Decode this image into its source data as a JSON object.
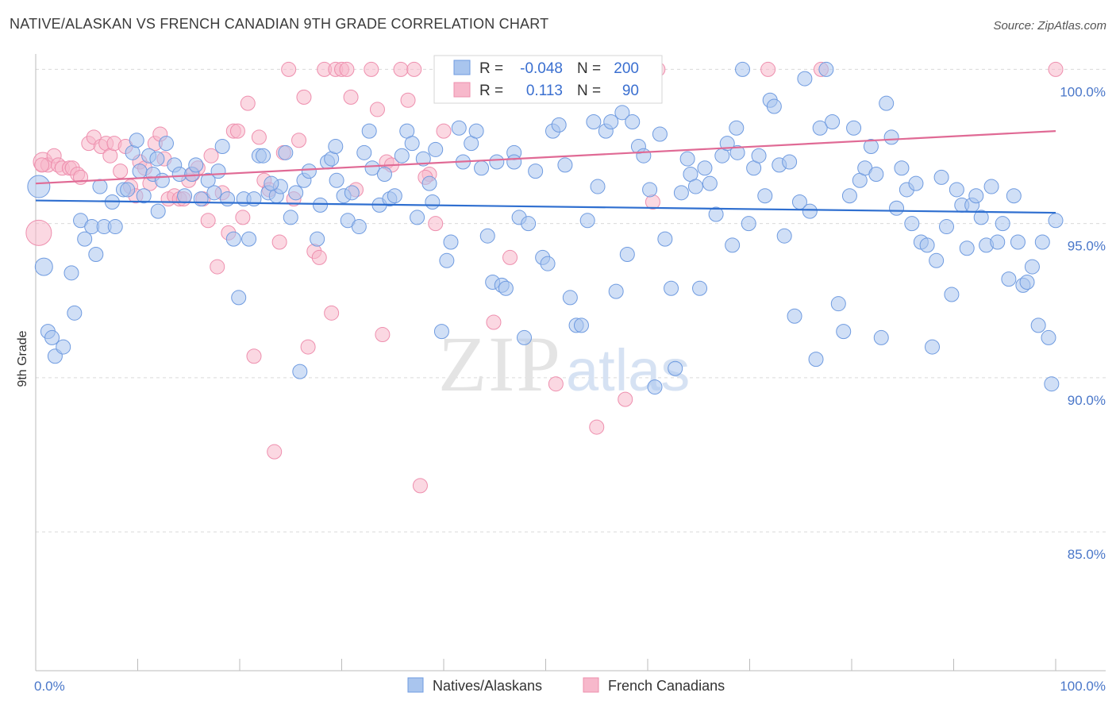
{
  "title": "NATIVE/ALASKAN VS FRENCH CANADIAN 9TH GRADE CORRELATION CHART",
  "source": "Source: ZipAtlas.com",
  "colors": {
    "blue_fill": "#a9c5ee",
    "blue_stroke": "#6f9be0",
    "blue_line": "#2f6fd0",
    "pink_fill": "#f7b8cb",
    "pink_stroke": "#ee8fae",
    "pink_line": "#e06a95",
    "grid": "#d9d9d9",
    "tick_text": "#4a77c9"
  },
  "chart_data": {
    "type": "scatter",
    "title": "NATIVE/ALASKAN VS FRENCH CANADIAN 9TH GRADE CORRELATION CHART",
    "xlabel": "",
    "ylabel": "9th Grade",
    "xlim": [
      0,
      100
    ],
    "ylim": [
      80.5,
      100.5
    ],
    "x_tick_labels": [
      "0.0%",
      "100.0%"
    ],
    "y_ticks": [
      85,
      90,
      95,
      100
    ],
    "y_tick_labels": [
      "85.0%",
      "90.0%",
      "95.0%",
      "100.0%"
    ],
    "legend": {
      "rows": [
        {
          "r_label": "R =",
          "r": "-0.048",
          "n_label": "N =",
          "n": "200"
        },
        {
          "r_label": "R =",
          "r": "0.113",
          "n_label": "N =",
          "n": "90"
        }
      ]
    },
    "watermark": {
      "zip": "ZIP",
      "atlas": "atlas"
    },
    "series": [
      {
        "name": "Natives/Alaskans",
        "color": "blue",
        "trend": {
          "x": [
            0,
            100
          ],
          "y": [
            95.75,
            95.35
          ]
        },
        "points": [
          [
            0.3,
            96.2
          ],
          [
            0.8,
            93.6
          ],
          [
            1.2,
            91.5
          ],
          [
            1.6,
            91.3
          ],
          [
            1.9,
            90.7
          ],
          [
            2.7,
            91.0
          ],
          [
            3.5,
            93.4
          ],
          [
            3.8,
            92.1
          ],
          [
            4.4,
            95.1
          ],
          [
            4.8,
            94.5
          ],
          [
            5.5,
            94.9
          ],
          [
            5.9,
            94.0
          ],
          [
            6.3,
            96.2
          ],
          [
            6.7,
            94.9
          ],
          [
            7.5,
            95.7
          ],
          [
            7.8,
            94.9
          ],
          [
            8.6,
            96.1
          ],
          [
            9.0,
            96.1
          ],
          [
            9.5,
            97.3
          ],
          [
            9.9,
            97.7
          ],
          [
            10.2,
            96.7
          ],
          [
            10.6,
            95.9
          ],
          [
            11.1,
            97.2
          ],
          [
            11.5,
            96.6
          ],
          [
            12.0,
            95.4
          ],
          [
            12.4,
            96.4
          ],
          [
            12.8,
            97.6
          ],
          [
            13.6,
            96.9
          ],
          [
            14.1,
            96.6
          ],
          [
            14.6,
            95.9
          ],
          [
            15.3,
            96.6
          ],
          [
            15.7,
            96.9
          ],
          [
            16.2,
            95.8
          ],
          [
            16.9,
            96.4
          ],
          [
            17.5,
            96.0
          ],
          [
            17.9,
            96.7
          ],
          [
            18.3,
            97.5
          ],
          [
            18.8,
            95.8
          ],
          [
            19.4,
            94.5
          ],
          [
            19.9,
            92.6
          ],
          [
            20.4,
            95.8
          ],
          [
            20.9,
            94.5
          ],
          [
            21.4,
            95.8
          ],
          [
            21.9,
            97.2
          ],
          [
            22.3,
            97.2
          ],
          [
            22.8,
            96.0
          ],
          [
            23.6,
            95.9
          ],
          [
            24.0,
            96.2
          ],
          [
            24.5,
            97.3
          ],
          [
            25.0,
            95.2
          ],
          [
            25.5,
            96.0
          ],
          [
            25.9,
            90.2
          ],
          [
            26.3,
            96.4
          ],
          [
            26.8,
            96.7
          ],
          [
            27.6,
            94.5
          ],
          [
            27.9,
            95.6
          ],
          [
            28.6,
            97.0
          ],
          [
            29.0,
            97.1
          ],
          [
            29.4,
            97.5
          ],
          [
            30.2,
            95.9
          ],
          [
            30.6,
            95.1
          ],
          [
            31.0,
            96.0
          ],
          [
            31.7,
            94.9
          ],
          [
            32.2,
            97.3
          ],
          [
            32.7,
            98.0
          ],
          [
            33.0,
            96.8
          ],
          [
            33.7,
            95.6
          ],
          [
            34.2,
            96.6
          ],
          [
            34.7,
            95.8
          ],
          [
            35.2,
            95.9
          ],
          [
            35.9,
            97.2
          ],
          [
            36.4,
            98.0
          ],
          [
            36.9,
            97.6
          ],
          [
            37.4,
            95.2
          ],
          [
            38.0,
            97.1
          ],
          [
            38.6,
            96.3
          ],
          [
            39.2,
            97.4
          ],
          [
            39.8,
            91.5
          ],
          [
            40.3,
            93.8
          ],
          [
            40.7,
            94.4
          ],
          [
            41.5,
            98.1
          ],
          [
            41.9,
            97.0
          ],
          [
            42.7,
            97.6
          ],
          [
            43.2,
            98.0
          ],
          [
            43.7,
            96.8
          ],
          [
            44.3,
            94.6
          ],
          [
            44.8,
            93.1
          ],
          [
            45.2,
            97.0
          ],
          [
            45.7,
            93.0
          ],
          [
            46.1,
            92.9
          ],
          [
            46.9,
            97.3
          ],
          [
            47.4,
            95.2
          ],
          [
            47.9,
            91.3
          ],
          [
            48.3,
            95.0
          ],
          [
            49.0,
            96.7
          ],
          [
            49.7,
            93.9
          ],
          [
            50.2,
            93.7
          ],
          [
            50.7,
            98.0
          ],
          [
            51.3,
            98.2
          ],
          [
            51.9,
            96.9
          ],
          [
            52.4,
            92.6
          ],
          [
            53.0,
            91.7
          ],
          [
            53.5,
            91.7
          ],
          [
            54.1,
            95.1
          ],
          [
            54.7,
            98.3
          ],
          [
            55.1,
            96.2
          ],
          [
            55.9,
            98.0
          ],
          [
            56.4,
            98.3
          ],
          [
            56.9,
            92.8
          ],
          [
            57.5,
            98.6
          ],
          [
            58.0,
            94.0
          ],
          [
            58.5,
            98.3
          ],
          [
            59.1,
            97.5
          ],
          [
            59.6,
            97.2
          ],
          [
            60.2,
            96.1
          ],
          [
            60.7,
            89.7
          ],
          [
            61.2,
            97.9
          ],
          [
            61.7,
            94.5
          ],
          [
            62.3,
            92.9
          ],
          [
            62.7,
            90.3
          ],
          [
            63.3,
            96.0
          ],
          [
            63.9,
            97.1
          ],
          [
            64.2,
            96.6
          ],
          [
            64.7,
            96.2
          ],
          [
            65.1,
            92.9
          ],
          [
            65.6,
            96.8
          ],
          [
            66.1,
            96.3
          ],
          [
            66.7,
            95.3
          ],
          [
            67.3,
            97.2
          ],
          [
            67.8,
            97.6
          ],
          [
            68.3,
            94.3
          ],
          [
            68.8,
            97.3
          ],
          [
            69.3,
            100.0
          ],
          [
            69.9,
            95.0
          ],
          [
            70.4,
            96.8
          ],
          [
            70.9,
            97.2
          ],
          [
            71.5,
            95.9
          ],
          [
            72.0,
            99.0
          ],
          [
            72.4,
            98.8
          ],
          [
            72.9,
            96.9
          ],
          [
            73.4,
            94.6
          ],
          [
            73.9,
            97.0
          ],
          [
            74.4,
            92.0
          ],
          [
            74.9,
            95.7
          ],
          [
            75.4,
            99.7
          ],
          [
            75.9,
            95.4
          ],
          [
            76.5,
            90.6
          ],
          [
            76.9,
            98.1
          ],
          [
            77.5,
            100.0
          ],
          [
            78.1,
            98.3
          ],
          [
            78.7,
            92.4
          ],
          [
            79.2,
            91.5
          ],
          [
            79.8,
            95.9
          ],
          [
            80.2,
            98.1
          ],
          [
            80.8,
            96.4
          ],
          [
            81.3,
            96.8
          ],
          [
            81.9,
            97.5
          ],
          [
            82.4,
            96.6
          ],
          [
            82.9,
            91.3
          ],
          [
            83.4,
            98.9
          ],
          [
            83.9,
            97.8
          ],
          [
            84.4,
            95.5
          ],
          [
            84.9,
            96.8
          ],
          [
            85.4,
            96.1
          ],
          [
            85.9,
            95.0
          ],
          [
            86.3,
            96.3
          ],
          [
            86.8,
            94.4
          ],
          [
            87.4,
            94.3
          ],
          [
            87.9,
            91.0
          ],
          [
            88.3,
            93.8
          ],
          [
            88.8,
            96.5
          ],
          [
            89.3,
            94.9
          ],
          [
            89.8,
            92.7
          ],
          [
            90.3,
            96.1
          ],
          [
            90.8,
            95.6
          ],
          [
            91.3,
            94.2
          ],
          [
            91.8,
            95.6
          ],
          [
            92.2,
            95.9
          ],
          [
            92.7,
            95.2
          ],
          [
            93.2,
            94.3
          ],
          [
            93.7,
            96.2
          ],
          [
            94.3,
            94.4
          ],
          [
            94.8,
            95.0
          ],
          [
            95.4,
            93.2
          ],
          [
            95.9,
            95.9
          ],
          [
            96.3,
            94.4
          ],
          [
            96.8,
            93.0
          ],
          [
            97.2,
            93.1
          ],
          [
            97.7,
            93.6
          ],
          [
            98.3,
            91.7
          ],
          [
            98.7,
            94.4
          ],
          [
            99.3,
            91.3
          ],
          [
            99.6,
            89.8
          ],
          [
            100.0,
            95.1
          ],
          [
            23.1,
            96.3
          ],
          [
            46.9,
            97.0
          ],
          [
            29.5,
            96.4
          ],
          [
            68.7,
            98.1
          ],
          [
            38.9,
            95.7
          ],
          [
            11.9,
            97.1
          ]
        ]
      },
      {
        "name": "French Canadians",
        "color": "pink",
        "trend": {
          "x": [
            0,
            100
          ],
          "y": [
            96.3,
            98.0
          ]
        },
        "points": [
          [
            0.3,
            94.7
          ],
          [
            0.7,
            97.0
          ],
          [
            1.2,
            96.9
          ],
          [
            1.8,
            97.2
          ],
          [
            2.2,
            96.9
          ],
          [
            2.6,
            96.8
          ],
          [
            3.3,
            96.8
          ],
          [
            3.6,
            96.8
          ],
          [
            4.1,
            96.6
          ],
          [
            4.4,
            96.5
          ],
          [
            5.2,
            97.6
          ],
          [
            5.7,
            97.8
          ],
          [
            6.4,
            97.5
          ],
          [
            6.9,
            97.6
          ],
          [
            7.3,
            97.2
          ],
          [
            7.7,
            97.6
          ],
          [
            8.3,
            96.7
          ],
          [
            8.8,
            97.5
          ],
          [
            9.3,
            96.2
          ],
          [
            9.8,
            95.9
          ],
          [
            10.2,
            97.0
          ],
          [
            10.7,
            96.8
          ],
          [
            11.2,
            96.3
          ],
          [
            11.7,
            97.6
          ],
          [
            12.2,
            97.9
          ],
          [
            12.6,
            97.1
          ],
          [
            13.0,
            95.8
          ],
          [
            13.6,
            95.9
          ],
          [
            14.1,
            95.8
          ],
          [
            14.5,
            95.8
          ],
          [
            15.0,
            96.4
          ],
          [
            15.4,
            96.6
          ],
          [
            15.9,
            96.8
          ],
          [
            16.4,
            95.8
          ],
          [
            16.9,
            95.1
          ],
          [
            17.2,
            97.2
          ],
          [
            17.8,
            93.6
          ],
          [
            18.3,
            96.0
          ],
          [
            18.9,
            94.7
          ],
          [
            19.4,
            98.0
          ],
          [
            19.8,
            98.0
          ],
          [
            20.3,
            95.2
          ],
          [
            20.8,
            98.9
          ],
          [
            21.4,
            90.7
          ],
          [
            21.9,
            97.8
          ],
          [
            22.4,
            96.4
          ],
          [
            22.9,
            96.1
          ],
          [
            23.4,
            87.6
          ],
          [
            23.9,
            94.4
          ],
          [
            24.3,
            97.3
          ],
          [
            24.8,
            100.0
          ],
          [
            25.3,
            95.8
          ],
          [
            25.8,
            97.7
          ],
          [
            26.3,
            99.1
          ],
          [
            26.7,
            91.0
          ],
          [
            27.3,
            94.1
          ],
          [
            27.8,
            93.9
          ],
          [
            28.3,
            100.0
          ],
          [
            29.0,
            92.1
          ],
          [
            29.4,
            100.0
          ],
          [
            30.0,
            100.0
          ],
          [
            30.5,
            100.0
          ],
          [
            30.9,
            99.1
          ],
          [
            31.4,
            96.1
          ],
          [
            32.9,
            100.0
          ],
          [
            33.5,
            98.7
          ],
          [
            34.0,
            91.4
          ],
          [
            34.4,
            97.0
          ],
          [
            34.9,
            96.9
          ],
          [
            35.8,
            100.0
          ],
          [
            36.5,
            99.0
          ],
          [
            37.1,
            100.0
          ],
          [
            37.7,
            86.5
          ],
          [
            38.6,
            96.6
          ],
          [
            39.2,
            95.0
          ],
          [
            40.0,
            98.0
          ],
          [
            41.0,
            100.0
          ],
          [
            44.9,
            91.8
          ],
          [
            46.5,
            93.9
          ],
          [
            51.0,
            89.8
          ],
          [
            55.0,
            88.4
          ],
          [
            57.8,
            89.3
          ],
          [
            60.5,
            95.7
          ],
          [
            61.0,
            100.0
          ],
          [
            71.8,
            100.0
          ],
          [
            77.0,
            100.0
          ],
          [
            38.2,
            96.5
          ],
          [
            40.2,
            100.0
          ],
          [
            100.0,
            100.0
          ],
          [
            0.6,
            96.9
          ]
        ]
      }
    ]
  }
}
